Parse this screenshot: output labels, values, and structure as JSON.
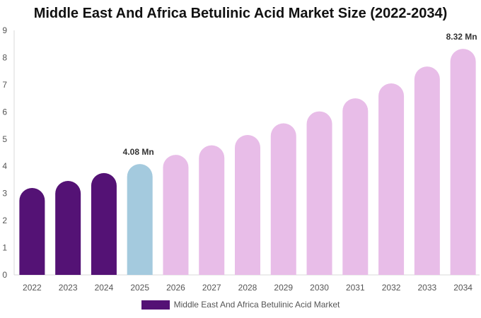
{
  "chart_data": {
    "type": "bar",
    "title": "Middle East And Africa Betulinic Acid Market Size (2022-2034)",
    "xlabel": "",
    "ylabel": "",
    "categories": [
      "2022",
      "2023",
      "2024",
      "2025",
      "2026",
      "2027",
      "2028",
      "2029",
      "2030",
      "2031",
      "2032",
      "2033",
      "2034"
    ],
    "series": [
      {
        "name": "Middle East And Africa Betulinic Acid Market",
        "values": [
          3.2,
          3.46,
          3.75,
          4.08,
          4.42,
          4.77,
          5.15,
          5.58,
          6.02,
          6.5,
          7.05,
          7.67,
          8.32
        ]
      }
    ],
    "bar_colors": [
      "#541275",
      "#541275",
      "#541275",
      "#a4cade",
      "#e8bde8",
      "#e8bde8",
      "#e8bde8",
      "#e8bde8",
      "#e8bde8",
      "#e8bde8",
      "#e8bde8",
      "#e8bde8",
      "#e8bde8"
    ],
    "y_ticks": [
      "0",
      "1",
      "2",
      "3",
      "4",
      "5",
      "6",
      "7",
      "8",
      "9"
    ],
    "ylim": [
      0,
      9
    ],
    "data_labels": [
      {
        "category": "2025",
        "text": "4.08 Mn"
      },
      {
        "category": "2034",
        "text": "8.32 Mn"
      }
    ],
    "legend": {
      "label": "Middle East And Africa Betulinic Acid Market",
      "color": "#541275",
      "position": "bottom-center"
    },
    "grid": false
  }
}
